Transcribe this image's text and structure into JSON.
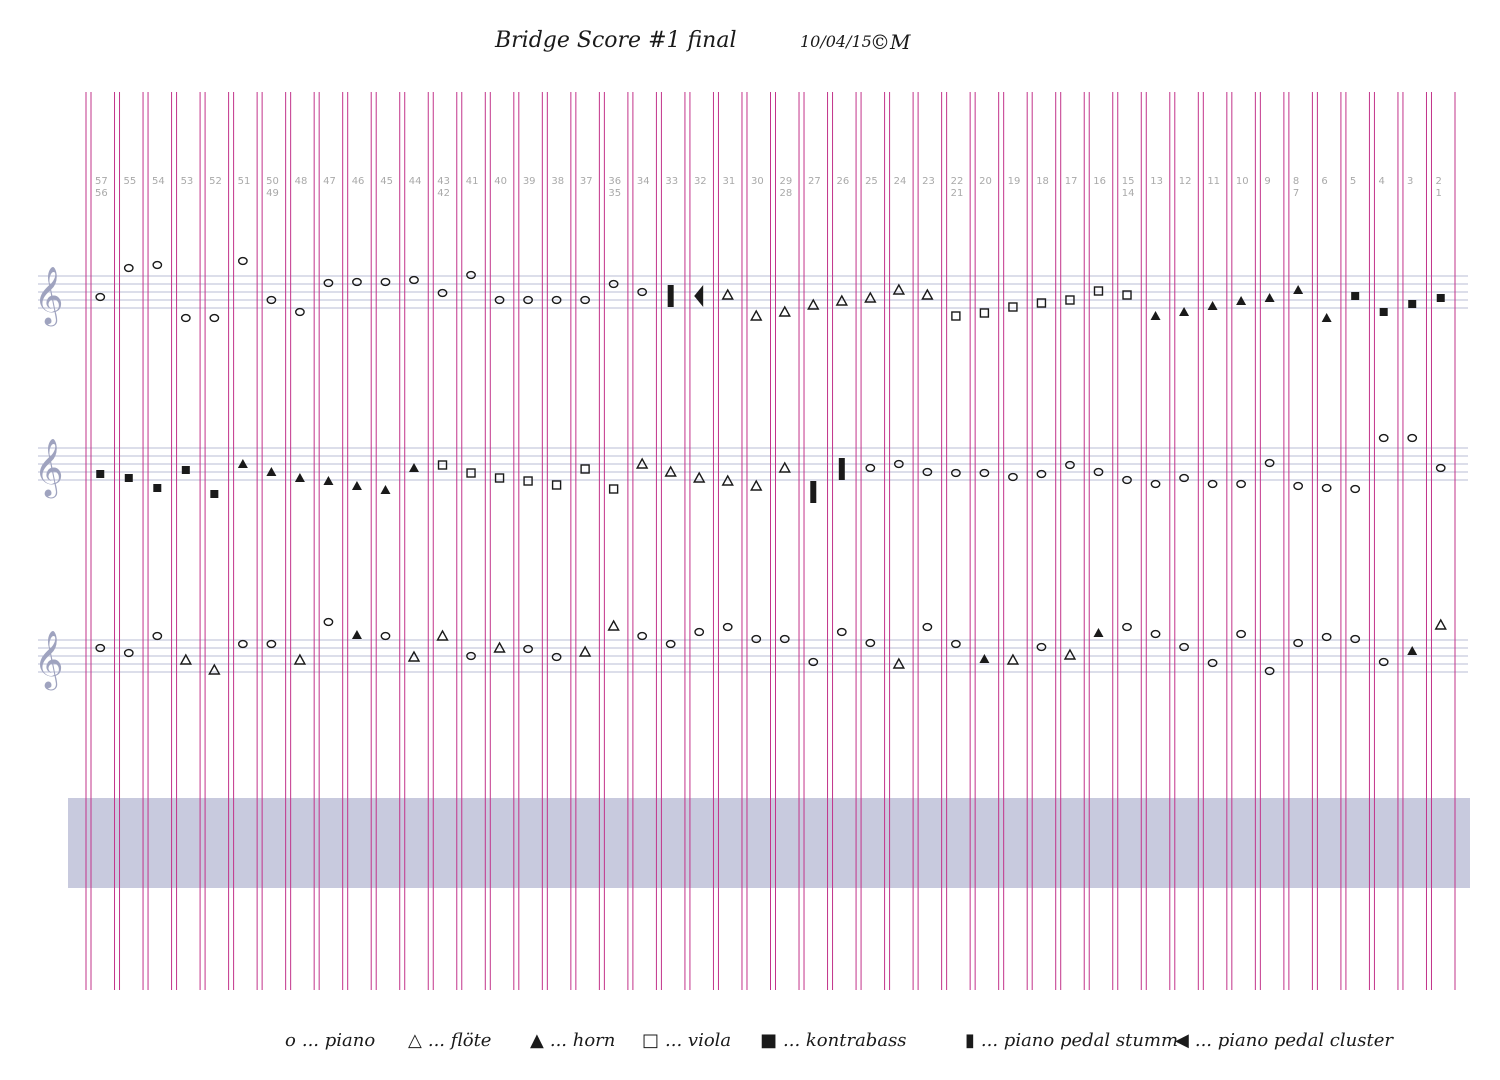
{
  "header": {
    "title": "Bridge Score #1 final",
    "date": "10/04/15",
    "signature": "©M"
  },
  "columns": [
    "57 56",
    "55",
    "54",
    "53",
    "52",
    "51",
    "50 49",
    "48",
    "47",
    "46",
    "45",
    "44",
    "43 42",
    "41",
    "40",
    "39",
    "38",
    "37",
    "36 35",
    "34",
    "33",
    "32",
    "31",
    "30",
    "29 28",
    "27",
    "26",
    "25",
    "24",
    "23",
    "22 21",
    "20",
    "19",
    "18",
    "17",
    "16",
    "15 14",
    "13",
    "12",
    "11",
    "10",
    "9",
    "8 7",
    "6",
    "5",
    "4",
    "3",
    "2 1"
  ],
  "staves": [
    "treble",
    "treble",
    "treble"
  ],
  "legend": [
    {
      "symbol": "o",
      "label": "... piano"
    },
    {
      "symbol": "△",
      "label": "... flöte"
    },
    {
      "symbol": "▲",
      "label": "... horn"
    },
    {
      "symbol": "□",
      "label": "... viola"
    },
    {
      "symbol": "■",
      "label": "... kontrabass"
    },
    {
      "symbol": "▮",
      "label": "... piano pedal stumm"
    },
    {
      "symbol": "◀",
      "label": "... piano pedal cluster"
    }
  ],
  "colors": {
    "barlines": "#c2338a",
    "staff": "#b9bdd6",
    "band": "#c8cade",
    "ink": "#1a1a1a",
    "numbers": "#a9a9a9"
  }
}
